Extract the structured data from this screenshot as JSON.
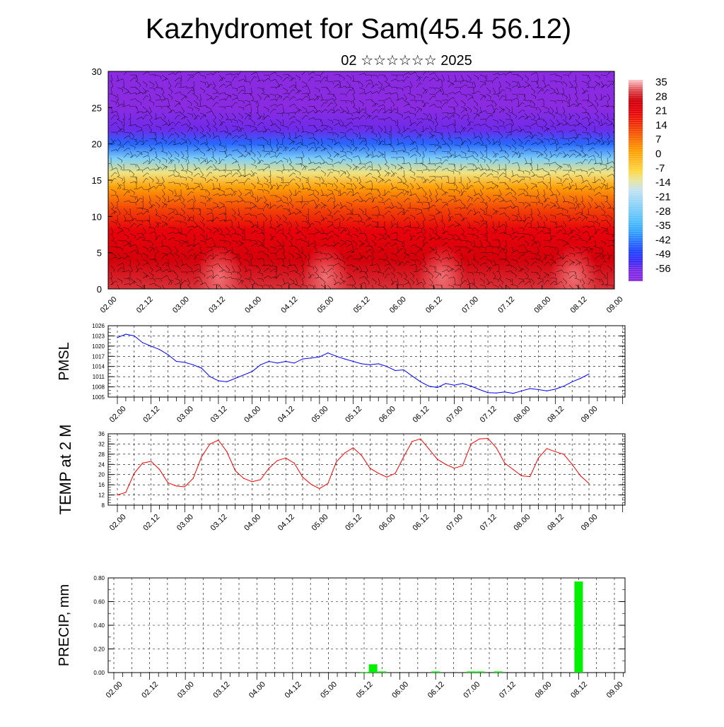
{
  "title": "Kazhydromet for Sam(45.4 56.12)",
  "subtitle": "02 ☆☆☆☆☆☆ 2025",
  "time_labels": [
    "02.00",
    "02.12",
    "03.00",
    "03.12",
    "04.00",
    "04.12",
    "05.00",
    "05.12",
    "06.00",
    "06.12",
    "07.00",
    "07.12",
    "08.00",
    "08.12",
    "09.00"
  ],
  "chart_data": [
    {
      "type": "heatmap",
      "name": "cross-section",
      "ylim": [
        0,
        30
      ],
      "yticks": [
        "0",
        "5",
        "10",
        "15",
        "20",
        "25",
        "30"
      ],
      "colorbar_labels": [
        "35",
        "28",
        "21",
        "14",
        "7",
        "0",
        "-7",
        "-14",
        "-21",
        "-28",
        "-35",
        "-42",
        "-49",
        "-56"
      ],
      "value_range": [
        -60,
        38
      ],
      "colors": {
        "hot": "#e8000b",
        "orange": "#ff9a00",
        "yellow": "#ffe14a",
        "cyan": "#38b6ff",
        "blue": "#1a2bff",
        "violet": "#8a2be2"
      },
      "vertical_profile": [
        {
          "h": 0,
          "v": 32
        },
        {
          "h": 4,
          "v": 27
        },
        {
          "h": 8,
          "v": 22
        },
        {
          "h": 11,
          "v": 14
        },
        {
          "h": 14,
          "v": 3
        },
        {
          "h": 16,
          "v": -10
        },
        {
          "h": 18,
          "v": -25
        },
        {
          "h": 20,
          "v": -42
        },
        {
          "h": 22,
          "v": -54
        },
        {
          "h": 25,
          "v": -58
        },
        {
          "h": 28,
          "v": -57
        },
        {
          "h": 30,
          "v": -58
        }
      ]
    },
    {
      "type": "line",
      "ylabel": "PMSL",
      "ylim": [
        1005,
        1026
      ],
      "yticks": [
        "1005",
        "1008",
        "1011",
        "1014",
        "1017",
        "1020",
        "1023",
        "1026"
      ],
      "color": "#0000ff",
      "x": [
        0,
        3,
        6,
        9,
        12,
        15,
        18,
        21,
        24,
        27,
        30,
        33,
        36,
        39,
        42,
        45,
        48,
        51,
        54,
        57,
        60,
        63,
        66,
        69,
        72,
        75,
        78,
        81,
        84,
        87,
        90,
        93,
        96,
        99,
        102,
        105,
        108,
        111,
        114,
        117,
        120,
        123,
        126,
        129,
        132,
        135,
        138,
        141,
        144,
        147,
        150,
        153,
        156,
        159,
        162,
        165,
        168
      ],
      "values": [
        1022.5,
        1023.5,
        1023,
        1021,
        1020,
        1019,
        1017.5,
        1015.5,
        1015.2,
        1014.5,
        1013.5,
        1011,
        1009.8,
        1009.5,
        1010.5,
        1011.5,
        1012.5,
        1014.5,
        1015.5,
        1015,
        1015.5,
        1015,
        1016.2,
        1016.5,
        1016.8,
        1018,
        1017,
        1016.2,
        1015.5,
        1014.8,
        1014.5,
        1014.8,
        1014,
        1012.8,
        1013,
        1011.2,
        1009.5,
        1008.2,
        1007.8,
        1009,
        1008.5,
        1009,
        1008.2,
        1007.2,
        1006.3,
        1006.2,
        1006.5,
        1006.1,
        1006.8,
        1007.5,
        1007.2,
        1006.8,
        1007.3,
        1008.2,
        1009.5,
        1010.5,
        1011.8
      ]
    },
    {
      "type": "line",
      "ylabel": "TEMP at 2 M",
      "ylim": [
        8,
        36
      ],
      "yticks": [
        "8",
        "12",
        "16",
        "20",
        "24",
        "28",
        "32",
        "36"
      ],
      "color": "#ff0000",
      "x": [
        0,
        3,
        6,
        9,
        12,
        15,
        18,
        21,
        24,
        27,
        30,
        33,
        36,
        39,
        42,
        45,
        48,
        51,
        54,
        57,
        60,
        63,
        66,
        69,
        72,
        75,
        78,
        81,
        84,
        87,
        90,
        93,
        96,
        99,
        102,
        105,
        108,
        111,
        114,
        117,
        120,
        123,
        126,
        129,
        132,
        135,
        138,
        141,
        144,
        147,
        150,
        153,
        156,
        159,
        162,
        165,
        168
      ],
      "values": [
        12,
        13,
        20.5,
        24.5,
        25.2,
        22,
        16.8,
        15.5,
        15.2,
        18.5,
        27,
        32,
        33.5,
        29,
        21.5,
        18.5,
        17.2,
        18,
        22.5,
        25.5,
        26.5,
        24.5,
        19,
        16.2,
        14.5,
        16.5,
        25,
        28.5,
        30.5,
        27.5,
        22.5,
        20.5,
        19,
        20.5,
        27,
        33,
        34,
        30,
        26,
        24,
        22.5,
        23.5,
        32,
        34,
        34.2,
        30.5,
        24.5,
        22,
        19.5,
        19.2,
        26.5,
        30.2,
        29,
        28,
        24,
        19.5,
        16.5
      ]
    },
    {
      "type": "bar",
      "ylabel": "PRECIP, mm",
      "ylim": [
        0,
        0.8
      ],
      "yticks": [
        "0.00",
        "0.20",
        "0.40",
        "0.60",
        "0.80"
      ],
      "color": "#00ee00",
      "x": [
        84,
        87,
        90,
        108,
        120,
        123,
        129,
        156
      ],
      "values": [
        0.005,
        0.07,
        0.01,
        0.01,
        0.01,
        0.01,
        0.01,
        0.77
      ]
    }
  ]
}
